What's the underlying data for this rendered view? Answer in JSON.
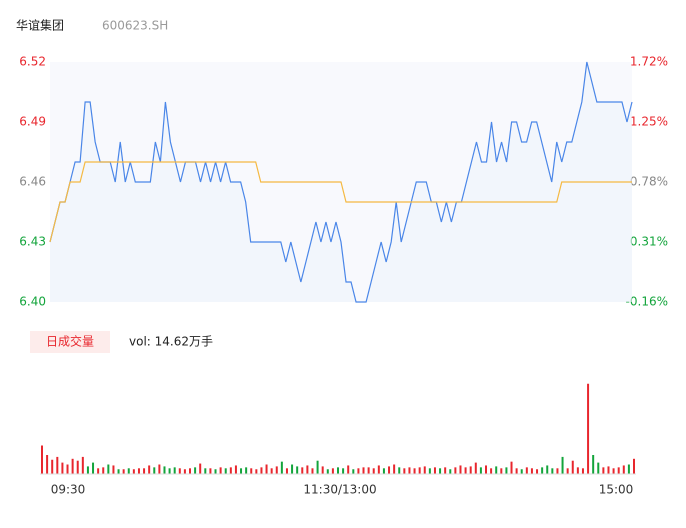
{
  "chart_data": {
    "type": "intraday",
    "title": "华谊集团",
    "subtitle": "600623.SH",
    "volume_badge": "日成交量",
    "volume_text": "vol: 14.62万手",
    "time_labels": [
      "09:30",
      "11:30/13:00",
      "15:00"
    ],
    "ylim": [
      6.4,
      6.52
    ],
    "yticks": [
      {
        "value": 6.4,
        "label": "6.40"
      },
      6.43,
      6.46,
      6.49,
      6.52
    ],
    "y2lim": [
      -0.16,
      1.72
    ],
    "y2ticks": [
      {
        "value": -0.16,
        "label": "-0.16%"
      },
      {
        "value": 0.31,
        "label": "0.31%"
      },
      {
        "value": 0.78,
        "label": "0.78%"
      },
      {
        "value": 1.25,
        "label": "1.25%"
      },
      {
        "value": 1.72,
        "label": "1.72%"
      }
    ],
    "up_color": "#e8262d",
    "down_color": "#13a43b",
    "mid_color": "#888888",
    "series": [
      {
        "name": "price",
        "color": "#4a86e8",
        "values": [
          6.43,
          6.44,
          6.45,
          6.45,
          6.46,
          6.47,
          6.47,
          6.5,
          6.5,
          6.48,
          6.47,
          6.47,
          6.47,
          6.46,
          6.48,
          6.46,
          6.47,
          6.46,
          6.46,
          6.46,
          6.46,
          6.48,
          6.47,
          6.5,
          6.48,
          6.47,
          6.46,
          6.47,
          6.47,
          6.47,
          6.46,
          6.47,
          6.46,
          6.47,
          6.46,
          6.47,
          6.46,
          6.46,
          6.46,
          6.45,
          6.43,
          6.43,
          6.43,
          6.43,
          6.43,
          6.43,
          6.43,
          6.42,
          6.43,
          6.42,
          6.41,
          6.42,
          6.43,
          6.44,
          6.43,
          6.44,
          6.43,
          6.44,
          6.43,
          6.41,
          6.41,
          6.4,
          6.4,
          6.4,
          6.41,
          6.42,
          6.43,
          6.42,
          6.43,
          6.45,
          6.43,
          6.44,
          6.45,
          6.46,
          6.46,
          6.46,
          6.45,
          6.45,
          6.44,
          6.45,
          6.44,
          6.45,
          6.45,
          6.46,
          6.47,
          6.48,
          6.47,
          6.47,
          6.49,
          6.47,
          6.48,
          6.47,
          6.49,
          6.49,
          6.48,
          6.48,
          6.49,
          6.49,
          6.48,
          6.47,
          6.46,
          6.48,
          6.47,
          6.48,
          6.48,
          6.49,
          6.5,
          6.52,
          6.51,
          6.5,
          6.5,
          6.5,
          6.5,
          6.5,
          6.5,
          6.49,
          6.5
        ]
      },
      {
        "name": "average",
        "color": "#f5b942",
        "values": [
          6.43,
          6.44,
          6.45,
          6.45,
          6.46,
          6.46,
          6.46,
          6.47,
          6.47,
          6.47,
          6.47,
          6.47,
          6.47,
          6.47,
          6.47,
          6.47,
          6.47,
          6.47,
          6.47,
          6.47,
          6.47,
          6.47,
          6.47,
          6.47,
          6.47,
          6.47,
          6.47,
          6.47,
          6.47,
          6.47,
          6.47,
          6.47,
          6.47,
          6.47,
          6.47,
          6.47,
          6.47,
          6.47,
          6.47,
          6.47,
          6.47,
          6.47,
          6.46,
          6.46,
          6.46,
          6.46,
          6.46,
          6.46,
          6.46,
          6.46,
          6.46,
          6.46,
          6.46,
          6.46,
          6.46,
          6.46,
          6.46,
          6.46,
          6.46,
          6.45,
          6.45,
          6.45,
          6.45,
          6.45,
          6.45,
          6.45,
          6.45,
          6.45,
          6.45,
          6.45,
          6.45,
          6.45,
          6.45,
          6.45,
          6.45,
          6.45,
          6.45,
          6.45,
          6.45,
          6.45,
          6.45,
          6.45,
          6.45,
          6.45,
          6.45,
          6.45,
          6.45,
          6.45,
          6.45,
          6.45,
          6.45,
          6.45,
          6.45,
          6.45,
          6.45,
          6.45,
          6.45,
          6.45,
          6.45,
          6.45,
          6.45,
          6.45,
          6.46,
          6.46,
          6.46,
          6.46,
          6.46,
          6.46,
          6.46,
          6.46,
          6.46,
          6.46,
          6.46,
          6.46,
          6.46,
          6.46,
          6.46
        ]
      }
    ],
    "volume_ylim": [
      0,
      10000
    ],
    "volume": [
      3000,
      2000,
      1500,
      1800,
      1200,
      1000,
      1600,
      1400,
      1800,
      800,
      1200,
      600,
      700,
      1000,
      900,
      500,
      500,
      600,
      500,
      600,
      600,
      900,
      700,
      1000,
      800,
      600,
      700,
      600,
      500,
      600,
      700,
      1100,
      600,
      600,
      500,
      700,
      600,
      700,
      900,
      600,
      700,
      600,
      500,
      700,
      1000,
      600,
      800,
      1300,
      600,
      1000,
      800,
      700,
      900,
      600,
      1400,
      800,
      500,
      600,
      700,
      600,
      900,
      500,
      600,
      700,
      700,
      600,
      900,
      600,
      800,
      1000,
      700,
      600,
      700,
      600,
      700,
      800,
      600,
      700,
      600,
      700,
      500,
      700,
      900,
      700,
      800,
      1200,
      700,
      900,
      600,
      800,
      600,
      700,
      1300,
      600,
      500,
      700,
      600,
      500,
      700,
      900,
      600,
      600,
      1800,
      600,
      1400,
      700,
      600,
      9500,
      2000,
      1200,
      700,
      800,
      600,
      700,
      900,
      1000,
      1600
    ]
  }
}
